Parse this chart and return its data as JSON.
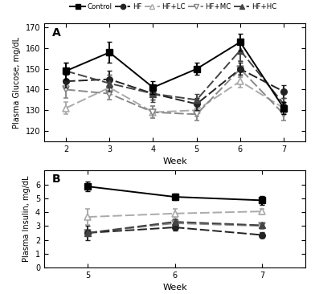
{
  "glucose_weeks": [
    2,
    3,
    4,
    5,
    6,
    7
  ],
  "glucose_control": [
    149,
    158,
    141,
    150,
    163,
    131
  ],
  "glucose_control_err": [
    4,
    5,
    3,
    3,
    4,
    3
  ],
  "glucose_HF": [
    144,
    145,
    138,
    133,
    150,
    139
  ],
  "glucose_HF_err": [
    3,
    4,
    3,
    3,
    3,
    3
  ],
  "glucose_LC": [
    131,
    141,
    129,
    130,
    144,
    131
  ],
  "glucose_LC_err": [
    3,
    3,
    3,
    3,
    3,
    3
  ],
  "glucose_MC": [
    140,
    138,
    129,
    128,
    150,
    128
  ],
  "glucose_MC_err": [
    4,
    3,
    3,
    3,
    4,
    3
  ],
  "glucose_HC": [
    149,
    143,
    138,
    135,
    159,
    133
  ],
  "glucose_HC_err": [
    4,
    4,
    4,
    3,
    5,
    3
  ],
  "insulin_weeks": [
    5,
    6,
    7
  ],
  "insulin_control": [
    5.85,
    5.1,
    4.85
  ],
  "insulin_control_err": [
    0.35,
    0.25,
    0.3
  ],
  "insulin_HF": [
    2.5,
    2.9,
    2.35
  ],
  "insulin_HF_err": [
    0.5,
    0.25,
    0.2
  ],
  "insulin_LC": [
    3.65,
    3.9,
    4.05
  ],
  "insulin_LC_err": [
    0.6,
    0.35,
    0.2
  ],
  "insulin_MC": [
    2.5,
    3.2,
    3.0
  ],
  "insulin_MC_err": [
    0.2,
    0.2,
    0.2
  ],
  "insulin_HC": [
    2.5,
    3.3,
    3.05
  ],
  "insulin_HC_err": [
    0.2,
    0.2,
    0.15
  ],
  "legend_labels": [
    "Control",
    "HF",
    "HF+LC",
    "HF+MC",
    "HF+HC"
  ],
  "panel_A_label": "A",
  "panel_B_label": "B",
  "xlabel": "Week",
  "ylabel_A": "Plasma Glucose, mg/dL",
  "ylabel_B": "Plasma Insulin, mg/dL",
  "ylim_A": [
    115,
    172
  ],
  "ylim_B": [
    0,
    7
  ],
  "yticks_A": [
    120,
    130,
    140,
    150,
    160,
    170
  ],
  "yticks_B": [
    0,
    1,
    2,
    3,
    4,
    5,
    6
  ],
  "color_control": "#000000",
  "color_HF": "#222222",
  "color_LC": "#aaaaaa",
  "color_MC": "#888888",
  "color_HC": "#444444",
  "lw": 1.4,
  "ms": 5.5
}
